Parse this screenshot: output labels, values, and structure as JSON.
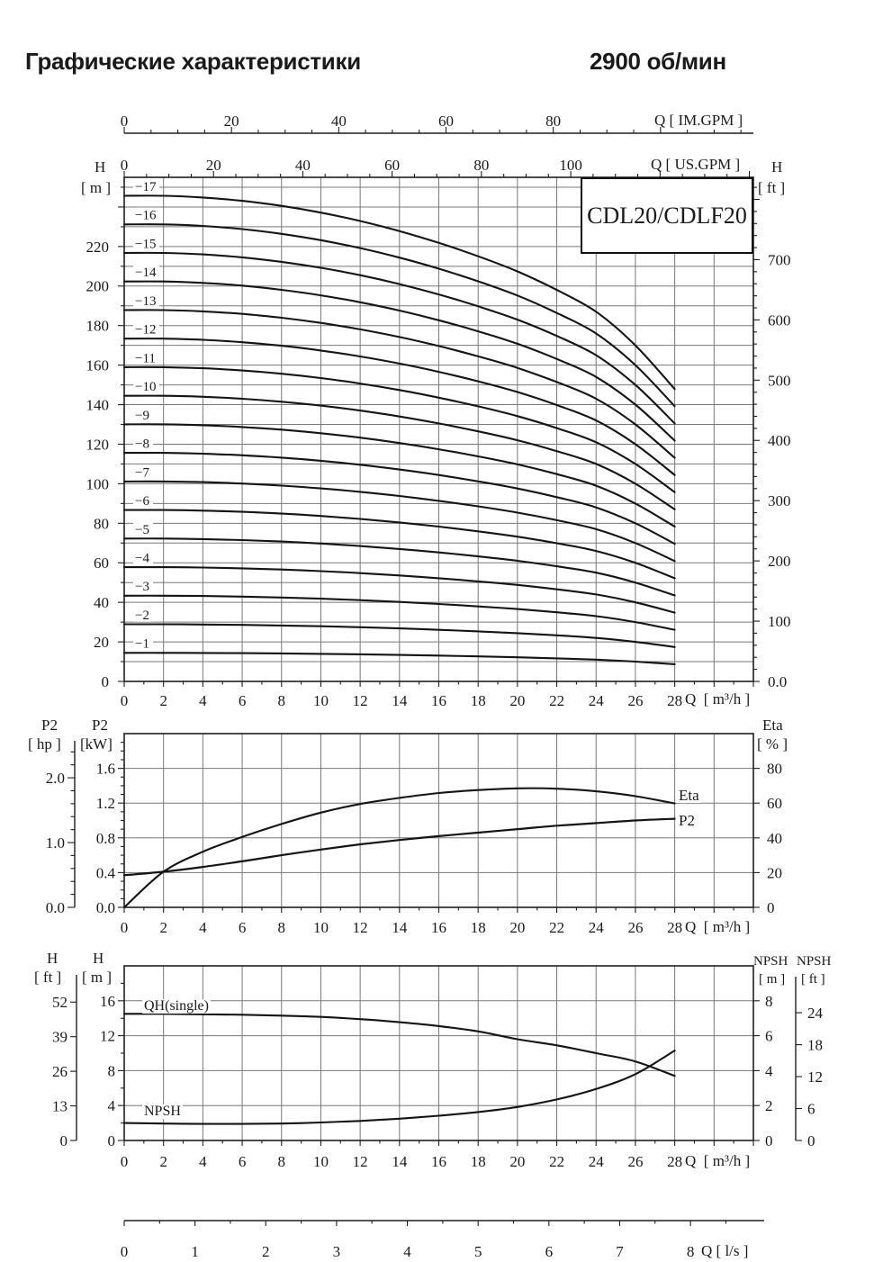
{
  "page": {
    "title_left": "Графические характеристики",
    "title_right": "2900 об/мин"
  },
  "labels": {
    "h": "H",
    "m_unit": "[ m ]",
    "ft_unit": "[ ft ]",
    "p2": "P2",
    "hp_unit": "[ hp ]",
    "kw_unit": "[kW]",
    "eta": "Eta",
    "pct_unit": "[ % ]",
    "npsh": "NPSH",
    "qh_single": "QH(single)",
    "q_m3h": "Q  [ m³/h ]",
    "q_ls": "Q [ l/s ]",
    "q_us_gpm": "Q [ US.GPM ]",
    "q_im_gpm": "Q [ IM.GPM ]"
  },
  "chart_data": [
    {
      "id": "multistage-head-curves",
      "type": "line",
      "title": "CDL20/CDLF20",
      "xlabel": "Q [ m³/h ]",
      "ylabel_left": "H [ m ]",
      "ylabel_right": "H [ ft ]",
      "x": [
        0,
        2,
        4,
        6,
        8,
        10,
        12,
        14,
        16,
        18,
        20,
        22,
        24,
        26,
        28
      ],
      "x_range": [
        0,
        32
      ],
      "per_stage_head_m": [
        14.45,
        14.45,
        14.4,
        14.3,
        14.15,
        13.95,
        13.7,
        13.4,
        13.05,
        12.65,
        12.2,
        11.65,
        11.0,
        10.0,
        8.7
      ],
      "stages": [
        1,
        2,
        3,
        4,
        5,
        6,
        7,
        8,
        9,
        10,
        11,
        12,
        13,
        14,
        15,
        16,
        17
      ],
      "stage_labels": [
        "−1",
        "−2",
        "−3",
        "−4",
        "−5",
        "−6",
        "−7",
        "−8",
        "−9",
        "−10",
        "−11",
        "−12",
        "−13",
        "−14",
        "−15",
        "−16",
        "−17"
      ],
      "note": "total head of stage n = n × per_stage_head_m at each x",
      "y_left_m": {
        "ticks": [
          0,
          20,
          40,
          60,
          80,
          100,
          120,
          140,
          160,
          180,
          200,
          220
        ],
        "range": [
          0,
          255
        ],
        "grid_step": 10
      },
      "y_right_ft": {
        "tick_labels": [
          "0.0",
          "100",
          "200",
          "300",
          "400",
          "500",
          "600",
          "700"
        ],
        "tick_values": [
          0,
          100,
          200,
          300,
          400,
          500,
          600,
          700
        ]
      },
      "x_top_im_gpm": {
        "ticks": [
          0,
          20,
          40,
          60,
          80
        ]
      },
      "x_top_us_gpm": {
        "ticks": [
          0,
          20,
          40,
          60,
          80,
          100
        ]
      }
    },
    {
      "id": "power-and-efficiency",
      "type": "line",
      "xlabel": "Q [ m³/h ]",
      "x": [
        0,
        2,
        4,
        6,
        8,
        10,
        12,
        14,
        16,
        18,
        20,
        22,
        24,
        26,
        28
      ],
      "x_range": [
        0,
        32
      ],
      "series": [
        {
          "name": "P2",
          "unit": "kW",
          "axis": "left",
          "values": [
            0.37,
            0.41,
            0.465,
            0.53,
            0.6,
            0.665,
            0.725,
            0.775,
            0.82,
            0.86,
            0.9,
            0.94,
            0.97,
            1.0,
            1.02
          ]
        },
        {
          "name": "Eta",
          "unit": "%",
          "axis": "right",
          "values": [
            0,
            20.5,
            32,
            40.5,
            48,
            54.5,
            59.5,
            63,
            65.8,
            67.5,
            68.5,
            68.3,
            66.8,
            64,
            59.8
          ]
        }
      ],
      "y_left_kw": {
        "tick_labels": [
          "0.0",
          "0.4",
          "0.8",
          "1.2",
          "1.6"
        ],
        "tick_values": [
          0,
          0.4,
          0.8,
          1.2,
          1.6
        ],
        "range": [
          0,
          2
        ]
      },
      "y_left_hp": {
        "tick_labels": [
          "0.0",
          "1.0",
          "2.0"
        ],
        "tick_values": [
          0,
          1,
          2
        ]
      },
      "y_right_eta": {
        "ticks": [
          0,
          20,
          40,
          60,
          80
        ],
        "range": [
          0,
          100
        ]
      }
    },
    {
      "id": "single-stage-and-npsh",
      "type": "line",
      "xlabel": "Q [ m³/h ]",
      "x": [
        0,
        2,
        4,
        6,
        8,
        10,
        12,
        14,
        16,
        18,
        20,
        22,
        24,
        26,
        28
      ],
      "x_range": [
        0,
        32
      ],
      "series": [
        {
          "name": "QH(single)",
          "unit": "m",
          "axis": "left",
          "values": [
            14.5,
            14.5,
            14.45,
            14.4,
            14.3,
            14.15,
            13.9,
            13.55,
            13.1,
            12.5,
            11.6,
            10.9,
            10.0,
            9.05,
            7.4
          ]
        },
        {
          "name": "NPSH",
          "unit": "m",
          "axis": "right",
          "values": [
            1.0,
            0.97,
            0.95,
            0.95,
            0.97,
            1.03,
            1.12,
            1.25,
            1.42,
            1.63,
            1.92,
            2.35,
            2.95,
            3.8,
            5.15
          ]
        }
      ],
      "y_left_m": {
        "ticks": [
          0,
          4,
          8,
          12,
          16
        ],
        "range": [
          0,
          20
        ]
      },
      "y_left_ft": {
        "ticks": [
          0,
          13,
          26,
          39,
          52
        ]
      },
      "y_right_npsh_m": {
        "ticks": [
          0,
          2,
          4,
          6,
          8
        ],
        "range": [
          0,
          10
        ]
      },
      "y_right_npsh_ft": {
        "ticks": [
          0,
          6,
          12,
          18,
          24
        ]
      },
      "x_bottom_ls": {
        "ticks": [
          0,
          1,
          2,
          3,
          4,
          5,
          6,
          7,
          8
        ]
      }
    }
  ],
  "colors": {
    "curve": "#141414",
    "grid": "#787878",
    "axis": "#1f1f1f",
    "text": "#1a1a1a",
    "background": "#ffffff"
  }
}
